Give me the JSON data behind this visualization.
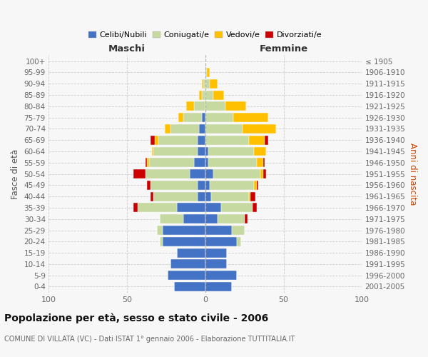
{
  "age_groups": [
    "0-4",
    "5-9",
    "10-14",
    "15-19",
    "20-24",
    "25-29",
    "30-34",
    "35-39",
    "40-44",
    "45-49",
    "50-54",
    "55-59",
    "60-64",
    "65-69",
    "70-74",
    "75-79",
    "80-84",
    "85-89",
    "90-94",
    "95-99",
    "100+"
  ],
  "birth_years": [
    "2001-2005",
    "1996-2000",
    "1991-1995",
    "1986-1990",
    "1981-1985",
    "1976-1980",
    "1971-1975",
    "1966-1970",
    "1961-1965",
    "1956-1960",
    "1951-1955",
    "1946-1950",
    "1941-1945",
    "1936-1940",
    "1931-1935",
    "1926-1930",
    "1921-1925",
    "1916-1920",
    "1911-1915",
    "1906-1910",
    "≤ 1905"
  ],
  "maschi": {
    "celibi": [
      20,
      24,
      22,
      18,
      27,
      27,
      14,
      18,
      5,
      5,
      10,
      7,
      5,
      5,
      4,
      2,
      0,
      0,
      0,
      0,
      0
    ],
    "coniugati": [
      0,
      0,
      0,
      0,
      2,
      4,
      15,
      25,
      28,
      30,
      28,
      29,
      28,
      25,
      18,
      12,
      7,
      2,
      1,
      0,
      0
    ],
    "vedovi": [
      0,
      0,
      0,
      0,
      0,
      0,
      0,
      0,
      0,
      0,
      0,
      1,
      1,
      2,
      4,
      3,
      5,
      2,
      1,
      0,
      0
    ],
    "divorziati": [
      0,
      0,
      0,
      0,
      0,
      0,
      0,
      3,
      2,
      2,
      8,
      1,
      0,
      3,
      0,
      0,
      0,
      0,
      0,
      0,
      0
    ]
  },
  "femmine": {
    "nubili": [
      17,
      20,
      14,
      14,
      20,
      17,
      8,
      10,
      4,
      3,
      5,
      2,
      2,
      0,
      0,
      0,
      0,
      0,
      0,
      0,
      0
    ],
    "coniugate": [
      0,
      0,
      0,
      0,
      3,
      8,
      17,
      20,
      24,
      28,
      30,
      31,
      29,
      28,
      24,
      18,
      13,
      5,
      3,
      1,
      0
    ],
    "vedove": [
      0,
      0,
      0,
      0,
      0,
      0,
      0,
      0,
      1,
      2,
      2,
      4,
      8,
      10,
      21,
      22,
      13,
      7,
      5,
      2,
      0
    ],
    "divorziate": [
      0,
      0,
      0,
      0,
      0,
      0,
      2,
      3,
      3,
      1,
      2,
      1,
      0,
      2,
      0,
      0,
      0,
      0,
      0,
      0,
      0
    ]
  },
  "colors": {
    "celibi": "#4472c4",
    "coniugati": "#c5d9a0",
    "vedovi": "#ffc000",
    "divorziati": "#cc0000"
  },
  "xlim": 100,
  "title": "Popolazione per età, sesso e stato civile - 2006",
  "subtitle": "COMUNE DI VILLATA (VC) - Dati ISTAT 1° gennaio 2006 - Elaborazione TUTTITALIA.IT",
  "ylabel_left": "Fasce di età",
  "ylabel_right": "Anni di nascita",
  "xlabel_maschi": "Maschi",
  "xlabel_femmine": "Femmine",
  "legend_labels": [
    "Celibi/Nubili",
    "Coniugati/e",
    "Vedovi/e",
    "Divorziati/e"
  ],
  "bg_color": "#f7f7f7",
  "grid_color": "#cccccc",
  "center_line_color": "#aaaaaa",
  "tick_color": "#666666"
}
